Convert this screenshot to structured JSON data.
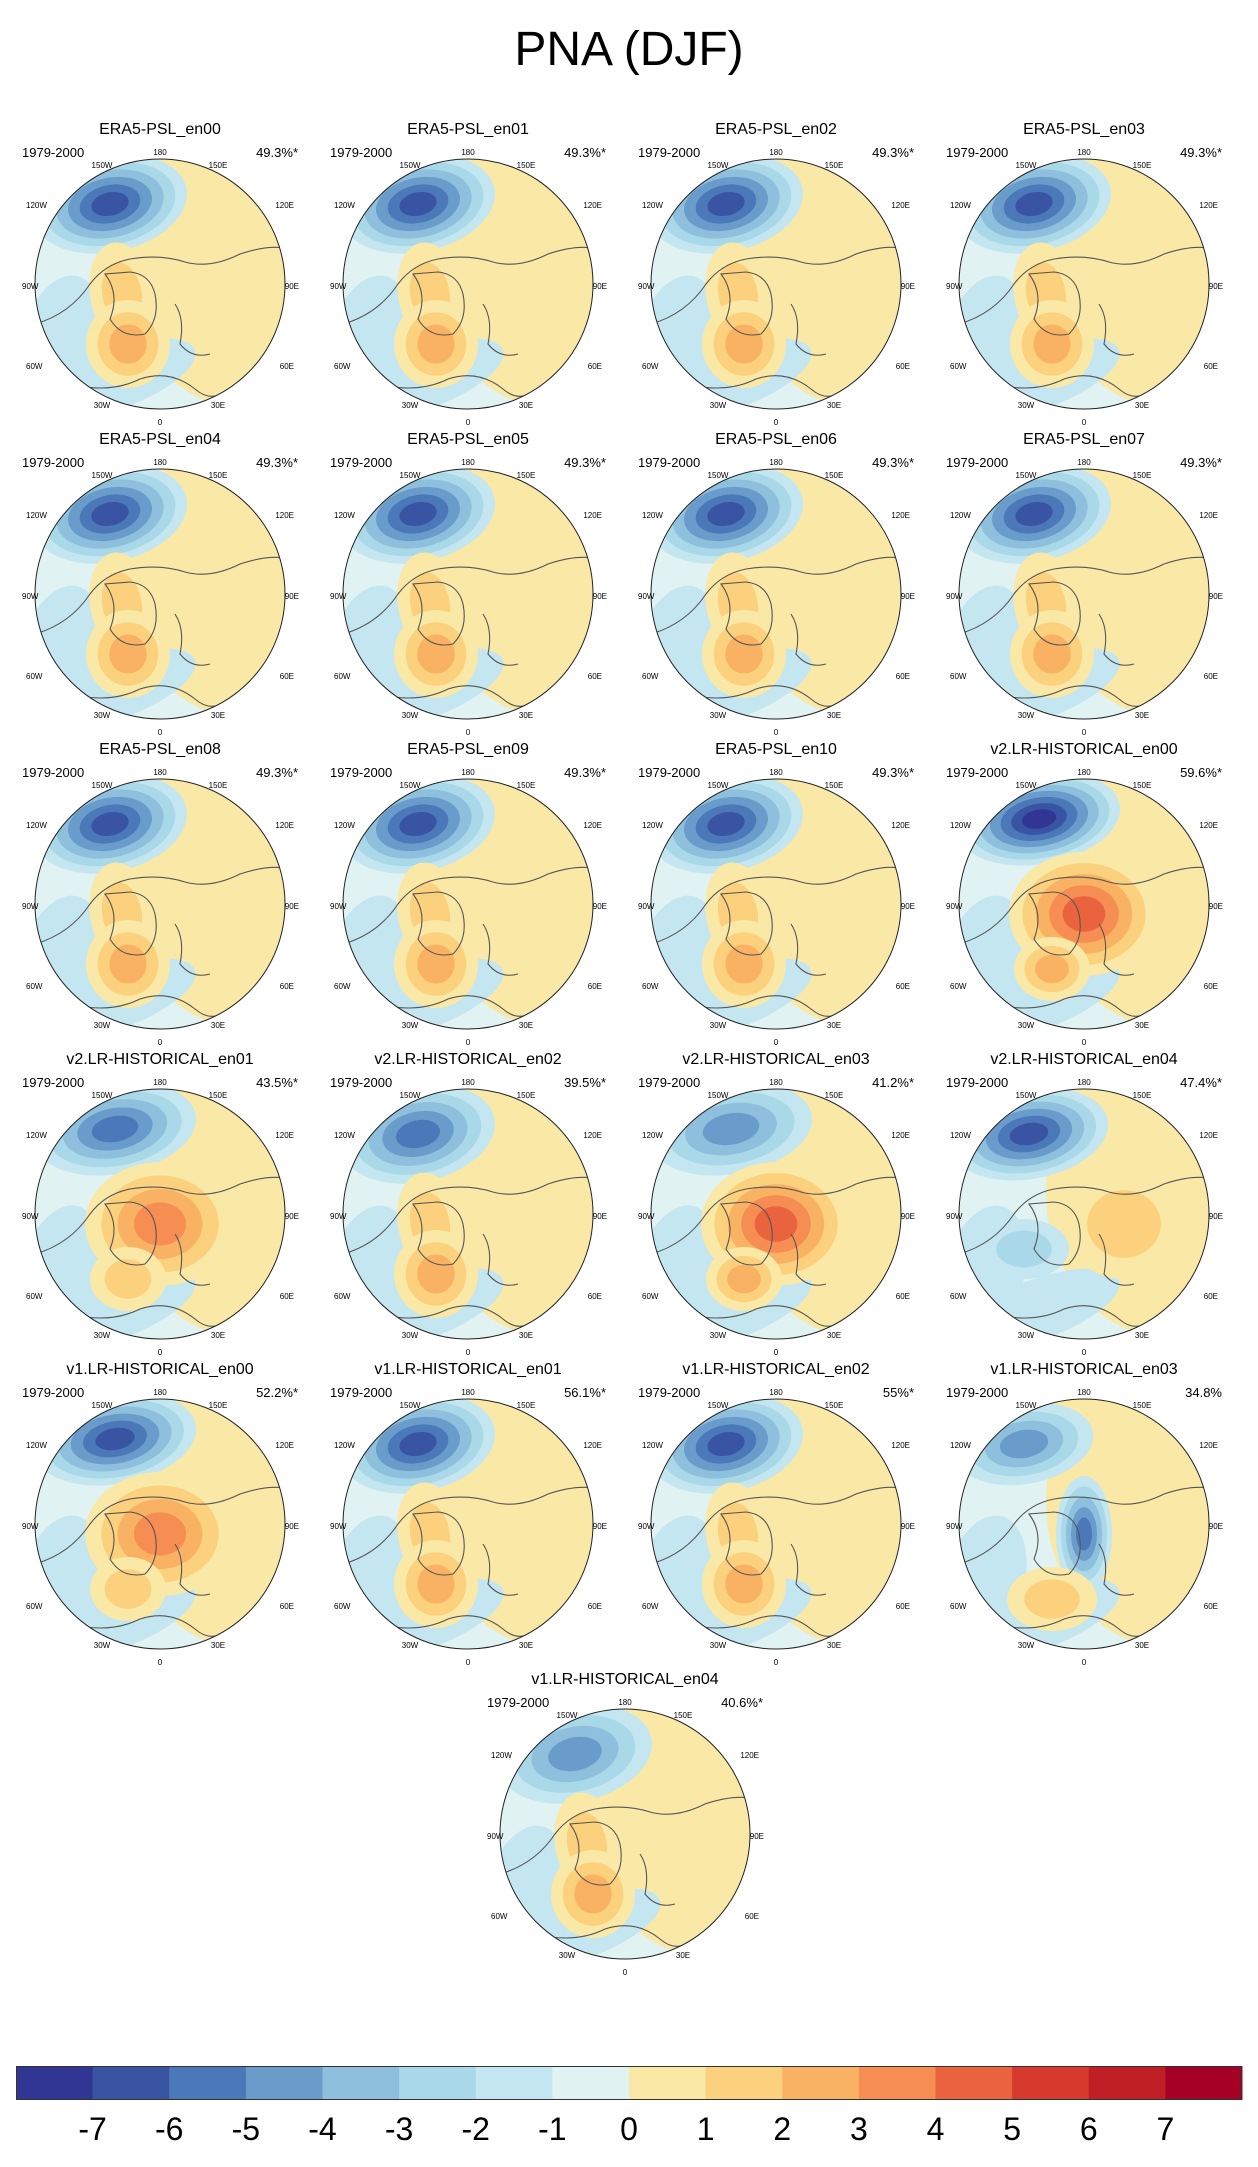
{
  "title": "PNA (DJF)",
  "longitude_labels": {
    "top": "180",
    "top_left": "150W",
    "top_right": "150E",
    "upper_left": "120W",
    "upper_right": "120E",
    "left": "90W",
    "right": "90E",
    "lower_left": "60W",
    "lower_right": "60E",
    "bottom_left": "30W",
    "bottom_right": "30E",
    "bottom": "0"
  },
  "panels": [
    {
      "title": "ERA5-PSL_en00",
      "period": "1979-2000",
      "variance": "49.3%*",
      "neg_strength": 6,
      "pos_strength": 3,
      "style": "obs"
    },
    {
      "title": "ERA5-PSL_en01",
      "period": "1979-2000",
      "variance": "49.3%*",
      "neg_strength": 6,
      "pos_strength": 3,
      "style": "obs"
    },
    {
      "title": "ERA5-PSL_en02",
      "period": "1979-2000",
      "variance": "49.3%*",
      "neg_strength": 6,
      "pos_strength": 3,
      "style": "obs"
    },
    {
      "title": "ERA5-PSL_en03",
      "period": "1979-2000",
      "variance": "49.3%*",
      "neg_strength": 6,
      "pos_strength": 3,
      "style": "obs"
    },
    {
      "title": "ERA5-PSL_en04",
      "period": "1979-2000",
      "variance": "49.3%*",
      "neg_strength": 6,
      "pos_strength": 3,
      "style": "obs"
    },
    {
      "title": "ERA5-PSL_en05",
      "period": "1979-2000",
      "variance": "49.3%*",
      "neg_strength": 6,
      "pos_strength": 3,
      "style": "obs"
    },
    {
      "title": "ERA5-PSL_en06",
      "period": "1979-2000",
      "variance": "49.3%*",
      "neg_strength": 6,
      "pos_strength": 3,
      "style": "obs"
    },
    {
      "title": "ERA5-PSL_en07",
      "period": "1979-2000",
      "variance": "49.3%*",
      "neg_strength": 6,
      "pos_strength": 3,
      "style": "obs"
    },
    {
      "title": "ERA5-PSL_en08",
      "period": "1979-2000",
      "variance": "49.3%*",
      "neg_strength": 6,
      "pos_strength": 3,
      "style": "obs"
    },
    {
      "title": "ERA5-PSL_en09",
      "period": "1979-2000",
      "variance": "49.3%*",
      "neg_strength": 6,
      "pos_strength": 3,
      "style": "obs"
    },
    {
      "title": "ERA5-PSL_en10",
      "period": "1979-2000",
      "variance": "49.3%*",
      "neg_strength": 6,
      "pos_strength": 3,
      "style": "obs"
    },
    {
      "title": "v2.LR-HISTORICAL_en00",
      "period": "1979-2000",
      "variance": "59.6%*",
      "neg_strength": 7,
      "pos_strength": 5,
      "style": "pole"
    },
    {
      "title": "v2.LR-HISTORICAL_en01",
      "period": "1979-2000",
      "variance": "43.5%*",
      "neg_strength": 5,
      "pos_strength": 4,
      "style": "pole"
    },
    {
      "title": "v2.LR-HISTORICAL_en02",
      "period": "1979-2000",
      "variance": "39.5%*",
      "neg_strength": 5,
      "pos_strength": 3,
      "style": "obs"
    },
    {
      "title": "v2.LR-HISTORICAL_en03",
      "period": "1979-2000",
      "variance": "41.2%*",
      "neg_strength": 4,
      "pos_strength": 5,
      "style": "pole"
    },
    {
      "title": "v2.LR-HISTORICAL_en04",
      "period": "1979-2000",
      "variance": "47.4%*",
      "neg_strength": 6,
      "pos_strength": 2,
      "style": "weak"
    },
    {
      "title": "v1.LR-HISTORICAL_en00",
      "period": "1979-2000",
      "variance": "52.2%*",
      "neg_strength": 6,
      "pos_strength": 4,
      "style": "pole"
    },
    {
      "title": "v1.LR-HISTORICAL_en01",
      "period": "1979-2000",
      "variance": "56.1%*",
      "neg_strength": 6,
      "pos_strength": 3,
      "style": "obs"
    },
    {
      "title": "v1.LR-HISTORICAL_en02",
      "period": "1979-2000",
      "variance": "55%*",
      "neg_strength": 6,
      "pos_strength": 3,
      "style": "obs"
    },
    {
      "title": "v1.LR-HISTORICAL_en03",
      "period": "1979-2000",
      "variance": "34.8%",
      "neg_strength": 5,
      "pos_strength": 2,
      "style": "split"
    },
    {
      "title": "v1.LR-HISTORICAL_en04",
      "period": "1979-2000",
      "variance": "40.6%*",
      "neg_strength": 4,
      "pos_strength": 3,
      "style": "obs"
    }
  ],
  "colorbar": {
    "labels": [
      "-7",
      "-6",
      "-5",
      "-4",
      "-3",
      "-2",
      "-1",
      "0",
      "1",
      "2",
      "3",
      "4",
      "5",
      "6",
      "7"
    ],
    "colors": [
      "#313695",
      "#3a54a4",
      "#4a78b8",
      "#6a9ccb",
      "#8ebfdd",
      "#a9d8e8",
      "#c4e6f0",
      "#e0f2f2",
      "#fae8a6",
      "#fbd17d",
      "#f9b263",
      "#f68d52",
      "#ea633f",
      "#d63a2c",
      "#c11f26",
      "#a50026"
    ]
  }
}
